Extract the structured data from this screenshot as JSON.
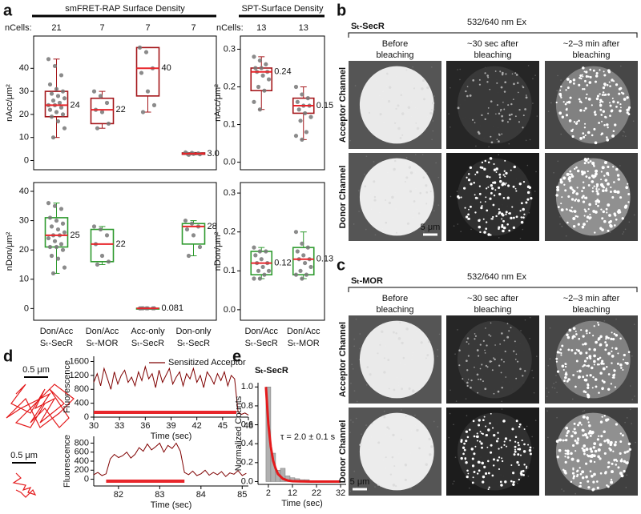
{
  "chart_data": [
    {
      "type": "box",
      "panel_label": "a",
      "title": "smFRET-RAP Surface Density",
      "ncells_label": "nCells:",
      "ncells": [
        21,
        7,
        7,
        7
      ],
      "categories": [
        [
          "Don/Acc",
          "Sₜ-SecR"
        ],
        [
          "Don/Acc",
          "Sₜ-MOR"
        ],
        [
          "Acc-only",
          "Sₜ-SecR"
        ],
        [
          "Don-only",
          "Sₜ-SecR"
        ]
      ],
      "panels": [
        {
          "y_label": "nAcc/μm²",
          "color": "#a4161a",
          "median_color": "#e8262b",
          "point_color": "#777777",
          "ylim": [
            -4,
            54
          ],
          "yticks": [
            0,
            10,
            20,
            30,
            40
          ],
          "boxes": [
            {
              "min": 10,
              "q1": 19,
              "median": 24,
              "q3": 30,
              "max": 44,
              "median_label": "24",
              "points": [
                44,
                41,
                37,
                33,
                31,
                30,
                29,
                28,
                27,
                26,
                25,
                24,
                24,
                23,
                22,
                21,
                20,
                19,
                17,
                14,
                10
              ]
            },
            {
              "min": 14,
              "q1": 16,
              "median": 22,
              "q3": 27,
              "max": 30,
              "median_label": "22",
              "points": [
                30,
                28,
                25,
                22,
                21,
                16,
                14
              ]
            },
            {
              "min": 21,
              "q1": 28,
              "median": 40,
              "q3": 49,
              "max": 49,
              "median_label": "40",
              "points": [
                49,
                47,
                40,
                38,
                30,
                24,
                21
              ]
            },
            {
              "min": 2.5,
              "q1": 2.7,
              "median": 3.0,
              "q3": 3.3,
              "max": 3.5,
              "median_label": "3.0",
              "points": [
                3.5,
                3.3,
                3.1,
                3.0,
                2.9,
                2.7,
                2.5
              ]
            }
          ]
        },
        {
          "y_label": "nDon/μm²",
          "color": "#2e9a2e",
          "median_color": "#e8262b",
          "point_color": "#777777",
          "ylim": [
            -4,
            43
          ],
          "yticks": [
            0,
            10,
            20,
            30,
            40
          ],
          "boxes": [
            {
              "min": 12,
              "q1": 21,
              "median": 25,
              "q3": 31,
              "max": 36,
              "median_label": "25",
              "points": [
                36,
                35,
                34,
                31,
                30,
                29,
                28,
                27,
                26,
                25,
                25,
                24,
                23,
                22,
                21,
                21,
                20,
                18,
                17,
                14,
                12
              ]
            },
            {
              "min": 15,
              "q1": 16,
              "median": 22,
              "q3": 27,
              "max": 28,
              "median_label": "22",
              "points": [
                28,
                27,
                25,
                22,
                18,
                16,
                15
              ]
            },
            {
              "min": 0.07,
              "q1": 0.075,
              "median": 0.081,
              "q3": 0.09,
              "max": 0.095,
              "median_label": "0.081",
              "points": [
                0.07,
                0.075,
                0.08,
                0.081,
                0.085,
                0.09,
                0.095
              ]
            },
            {
              "min": 18,
              "q1": 22,
              "median": 28,
              "q3": 29,
              "max": 30,
              "median_label": "28",
              "points": [
                30,
                29,
                28,
                27,
                25,
                21,
                18
              ]
            }
          ]
        }
      ]
    },
    {
      "type": "box",
      "title": "SPT-Surface Density",
      "ncells_label": "nCells:",
      "ncells": [
        13,
        13
      ],
      "categories": [
        [
          "Don/Acc",
          "Sₜ-SecR"
        ],
        [
          "Don/Acc",
          "Sₜ-MOR"
        ]
      ],
      "panels": [
        {
          "y_label": "nAcc/μm²",
          "color": "#a4161a",
          "median_color": "#e8262b",
          "point_color": "#777777",
          "ylim": [
            -0.02,
            0.335
          ],
          "yticks": [
            {
              "value": 0,
              "label": "0.0"
            },
            0.1,
            0.2,
            0.3
          ],
          "boxes": [
            {
              "min": 0.14,
              "q1": 0.19,
              "median": 0.24,
              "q3": 0.25,
              "max": 0.28,
              "median_label": "0.24",
              "points": [
                0.28,
                0.27,
                0.26,
                0.25,
                0.25,
                0.24,
                0.24,
                0.23,
                0.22,
                0.2,
                0.19,
                0.16,
                0.14
              ]
            },
            {
              "min": 0.06,
              "q1": 0.13,
              "median": 0.15,
              "q3": 0.17,
              "max": 0.2,
              "median_label": "0.15",
              "points": [
                0.2,
                0.18,
                0.17,
                0.16,
                0.15,
                0.15,
                0.14,
                0.13,
                0.12,
                0.11,
                0.08,
                0.07,
                0.06
              ]
            }
          ]
        },
        {
          "y_label": "nDon/μm²",
          "color": "#2e9a2e",
          "median_color": "#e8262b",
          "point_color": "#777777",
          "ylim": [
            -0.027,
            0.327
          ],
          "yticks": [
            {
              "value": 0,
              "label": "0.0"
            },
            0.1,
            0.2,
            0.3
          ],
          "boxes": [
            {
              "min": 0.08,
              "q1": 0.09,
              "median": 0.12,
              "q3": 0.15,
              "max": 0.16,
              "median_label": "0.12",
              "points": [
                0.16,
                0.15,
                0.15,
                0.14,
                0.13,
                0.12,
                0.12,
                0.11,
                0.1,
                0.1,
                0.09,
                0.08,
                0.08
              ]
            },
            {
              "min": 0.08,
              "q1": 0.09,
              "median": 0.13,
              "q3": 0.16,
              "max": 0.2,
              "median_label": "0.13",
              "points": [
                0.2,
                0.17,
                0.16,
                0.15,
                0.14,
                0.13,
                0.13,
                0.12,
                0.11,
                0.1,
                0.09,
                0.09,
                0.08
              ]
            }
          ]
        }
      ]
    },
    {
      "type": "line",
      "panel_label": "d",
      "trajectories": [
        {
          "color": "#e41a1c",
          "x": [
            0.3,
            0.5,
            0.2,
            0.6,
            0.9,
            0.7,
            1.1,
            0.8,
            1.3,
            1.0,
            1.4,
            1.2,
            0.9,
            0.6,
            1.0,
            0.4,
            0.1,
            0.5,
            0.8,
            1.2,
            1.5,
            1.1,
            0.7,
            0.3,
            0.6,
            0.9
          ],
          "y": [
            0.3,
            0.1,
            0.5,
            0.7,
            0.2,
            0.6,
            0.4,
            0.9,
            0.5,
            0.2,
            0.8,
            1.0,
            0.6,
            0.9,
            0.3,
            0.6,
            0.8,
            0.4,
            1.0,
            0.7,
            0.4,
            0.1,
            0.5,
            0.9,
            1.0,
            0.5
          ],
          "scale_bar": {
            "label": "0.5 μm",
            "length": 0.5
          }
        },
        {
          "color": "#e41a1c",
          "x": [
            0.1,
            0.2,
            0.05,
            0.3,
            0.25,
            0.4,
            0.35,
            0.5,
            0.45,
            0.3,
            0.2,
            0.1
          ],
          "y": [
            0.1,
            0.2,
            0.3,
            0.35,
            0.45,
            0.4,
            0.5,
            0.55,
            0.45,
            0.6,
            0.5,
            0.45
          ],
          "scale_bar": {
            "label": "0.5 μm",
            "length": 0.5
          }
        }
      ],
      "plots": [
        {
          "y_label": "Fluorescence",
          "x_label": "Time (sec)",
          "xlim": [
            30,
            48
          ],
          "xticks": [
            30,
            33,
            36,
            39,
            42,
            45,
            48
          ],
          "ylim": [
            0,
            1750
          ],
          "yticks": [
            0,
            400,
            800,
            1200,
            1600
          ],
          "series": [
            {
              "name": "Sensitized Acceptor",
              "color": "#7f0000",
              "x": [
                30,
                30.4,
                30.8,
                31.2,
                31.6,
                32,
                32.4,
                32.8,
                33.2,
                33.6,
                34,
                34.4,
                34.8,
                35.2,
                35.6,
                36,
                36.4,
                36.8,
                37.2,
                37.6,
                38,
                38.4,
                38.8,
                39.2,
                39.6,
                40,
                40.4,
                40.8,
                41.2,
                41.6,
                42,
                42.4,
                42.8,
                43.2,
                43.6,
                44,
                44.4,
                44.8,
                45.2,
                45.6,
                46,
                46.4,
                46.8,
                47.2,
                47.6,
                48
              ],
              "values": [
                1000,
                1250,
                900,
                1400,
                1100,
                800,
                1300,
                950,
                1200,
                1350,
                1000,
                1150,
                900,
                1300,
                1050,
                1450,
                1100,
                1250,
                850,
                1350,
                1000,
                1200,
                1400,
                950,
                1150,
                1300,
                900,
                1250,
                1100,
                1400,
                1000,
                1200,
                850,
                1300,
                1150,
                950,
                1250,
                1050,
                1300,
                900,
                1200,
                1100,
                150,
                80,
                120,
                60
              ]
            }
          ],
          "events": [
            {
              "start": 30,
              "end": 46.6
            }
          ],
          "event_color": "#e8262b"
        },
        {
          "y_label": "Fluorescence",
          "x_label": "Time (sec)",
          "xlim": [
            81.4,
            85.15
          ],
          "xticks": [
            82,
            83,
            84,
            85
          ],
          "ylim": [
            -150,
            950
          ],
          "yticks": [
            0,
            200,
            400,
            600,
            800
          ],
          "series": [
            {
              "color": "#7f0000",
              "x": [
                81.4,
                81.5,
                81.6,
                81.7,
                81.8,
                81.9,
                82.0,
                82.1,
                82.2,
                82.3,
                82.4,
                82.5,
                82.6,
                82.7,
                82.8,
                82.9,
                83.0,
                83.1,
                83.2,
                83.3,
                83.4,
                83.5,
                83.6,
                83.7,
                83.8,
                83.9,
                84.0,
                84.1,
                84.2,
                84.3,
                84.4,
                84.5,
                84.6,
                84.7,
                84.8,
                84.9,
                85.0,
                85.1
              ],
              "values": [
                100,
                150,
                80,
                120,
                450,
                550,
                480,
                520,
                600,
                470,
                550,
                700,
                620,
                780,
                650,
                720,
                800,
                600,
                750,
                680,
                800,
                620,
                150,
                100,
                180,
                80,
                120,
                200,
                90,
                150,
                100,
                170,
                60,
                140,
                110,
                190,
                80,
                130
              ]
            }
          ],
          "events": [
            {
              "start": 81.7,
              "end": 83.6
            }
          ],
          "event_color": "#e8262b"
        }
      ]
    },
    {
      "type": "histogram",
      "panel_label": "e",
      "title": "Sₜ-SecR",
      "y_label": "Normalized Counts",
      "x_label": "Time (sec)",
      "annotation": "τ = 2.0 ± 0.1 s",
      "bins": [
        1,
        3,
        5,
        7,
        9,
        11,
        13,
        15,
        17,
        19,
        21,
        23,
        25
      ],
      "counts": [
        1.0,
        0.3,
        0.12,
        0.14,
        0.06,
        0.04,
        0.03,
        0.02,
        0.02,
        0.01,
        0.01,
        0.01
      ],
      "color": "#b0b0b0",
      "fit": {
        "color": "#e41a1c",
        "x": [
          1,
          2,
          3,
          4,
          5,
          6,
          8,
          10,
          12,
          15,
          20,
          25,
          32
        ],
        "y": [
          1.0,
          0.61,
          0.37,
          0.22,
          0.14,
          0.08,
          0.03,
          0.011,
          0.004,
          0.001,
          0,
          0,
          0
        ]
      },
      "xlim": [
        -2.3,
        34.3
      ],
      "xticks": [
        2,
        12,
        22,
        32
      ],
      "ylim": [
        -0.03,
        1.045
      ],
      "yticks": [
        {
          "value": 0,
          "label": "0.0"
        },
        0.2,
        0.4,
        0.6,
        0.8,
        {
          "value": 1,
          "label": "1.0"
        }
      ]
    }
  ],
  "images": [
    {
      "panel_label": "b",
      "construct": "Sₜ-SecR",
      "excitation": "532/640 nm Ex",
      "columns": [
        [
          "Before",
          "bleaching"
        ],
        [
          "~30 sec after",
          "bleaching"
        ],
        [
          "~2–3 min after",
          "bleaching"
        ]
      ],
      "rows": [
        {
          "label": "Acceptor Channel",
          "color": "#d7191c"
        },
        {
          "label": "Donor Channel",
          "color": "#1a9641"
        }
      ],
      "scale_bar": "5 μm"
    },
    {
      "panel_label": "c",
      "construct": "Sₜ-MOR",
      "excitation": "532/640 nm Ex",
      "columns": [
        [
          "Before",
          "bleaching"
        ],
        [
          "~30 sec after",
          "bleaching"
        ],
        [
          "~2–3 min after",
          "bleaching"
        ]
      ],
      "rows": [
        {
          "label": "Acceptor Channel",
          "color": "#d7191c"
        },
        {
          "label": "Donor Channel",
          "color": "#1a9641"
        }
      ],
      "scale_bar": "5 μm"
    }
  ]
}
